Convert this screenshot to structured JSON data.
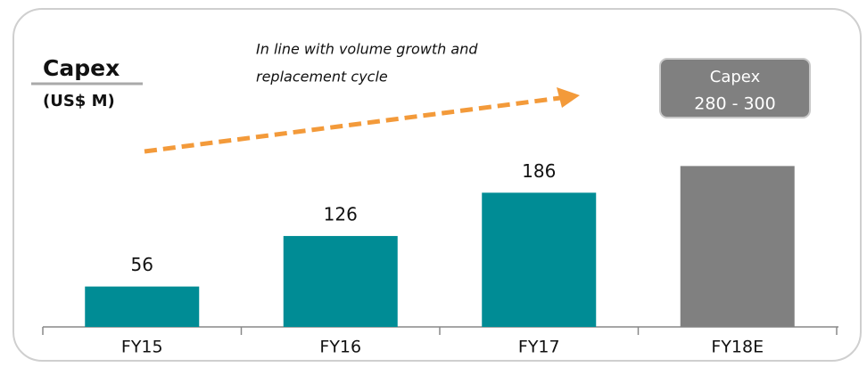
{
  "chart_data": {
    "type": "bar",
    "title": "Capex",
    "subtitle": "(US$ M)",
    "annotation": [
      "In line with volume growth and",
      "replacement cycle"
    ],
    "callout": [
      "Capex",
      "280 - 300"
    ],
    "categories": [
      "FY15",
      "FY16",
      "FY17",
      "FY18E"
    ],
    "values": [
      56,
      126,
      186,
      223
    ],
    "colors": [
      "#008c95",
      "#008c95",
      "#008c95",
      "#808080"
    ],
    "labeled": [
      true,
      true,
      true,
      false
    ],
    "arrow_color": "#f39a3a"
  }
}
